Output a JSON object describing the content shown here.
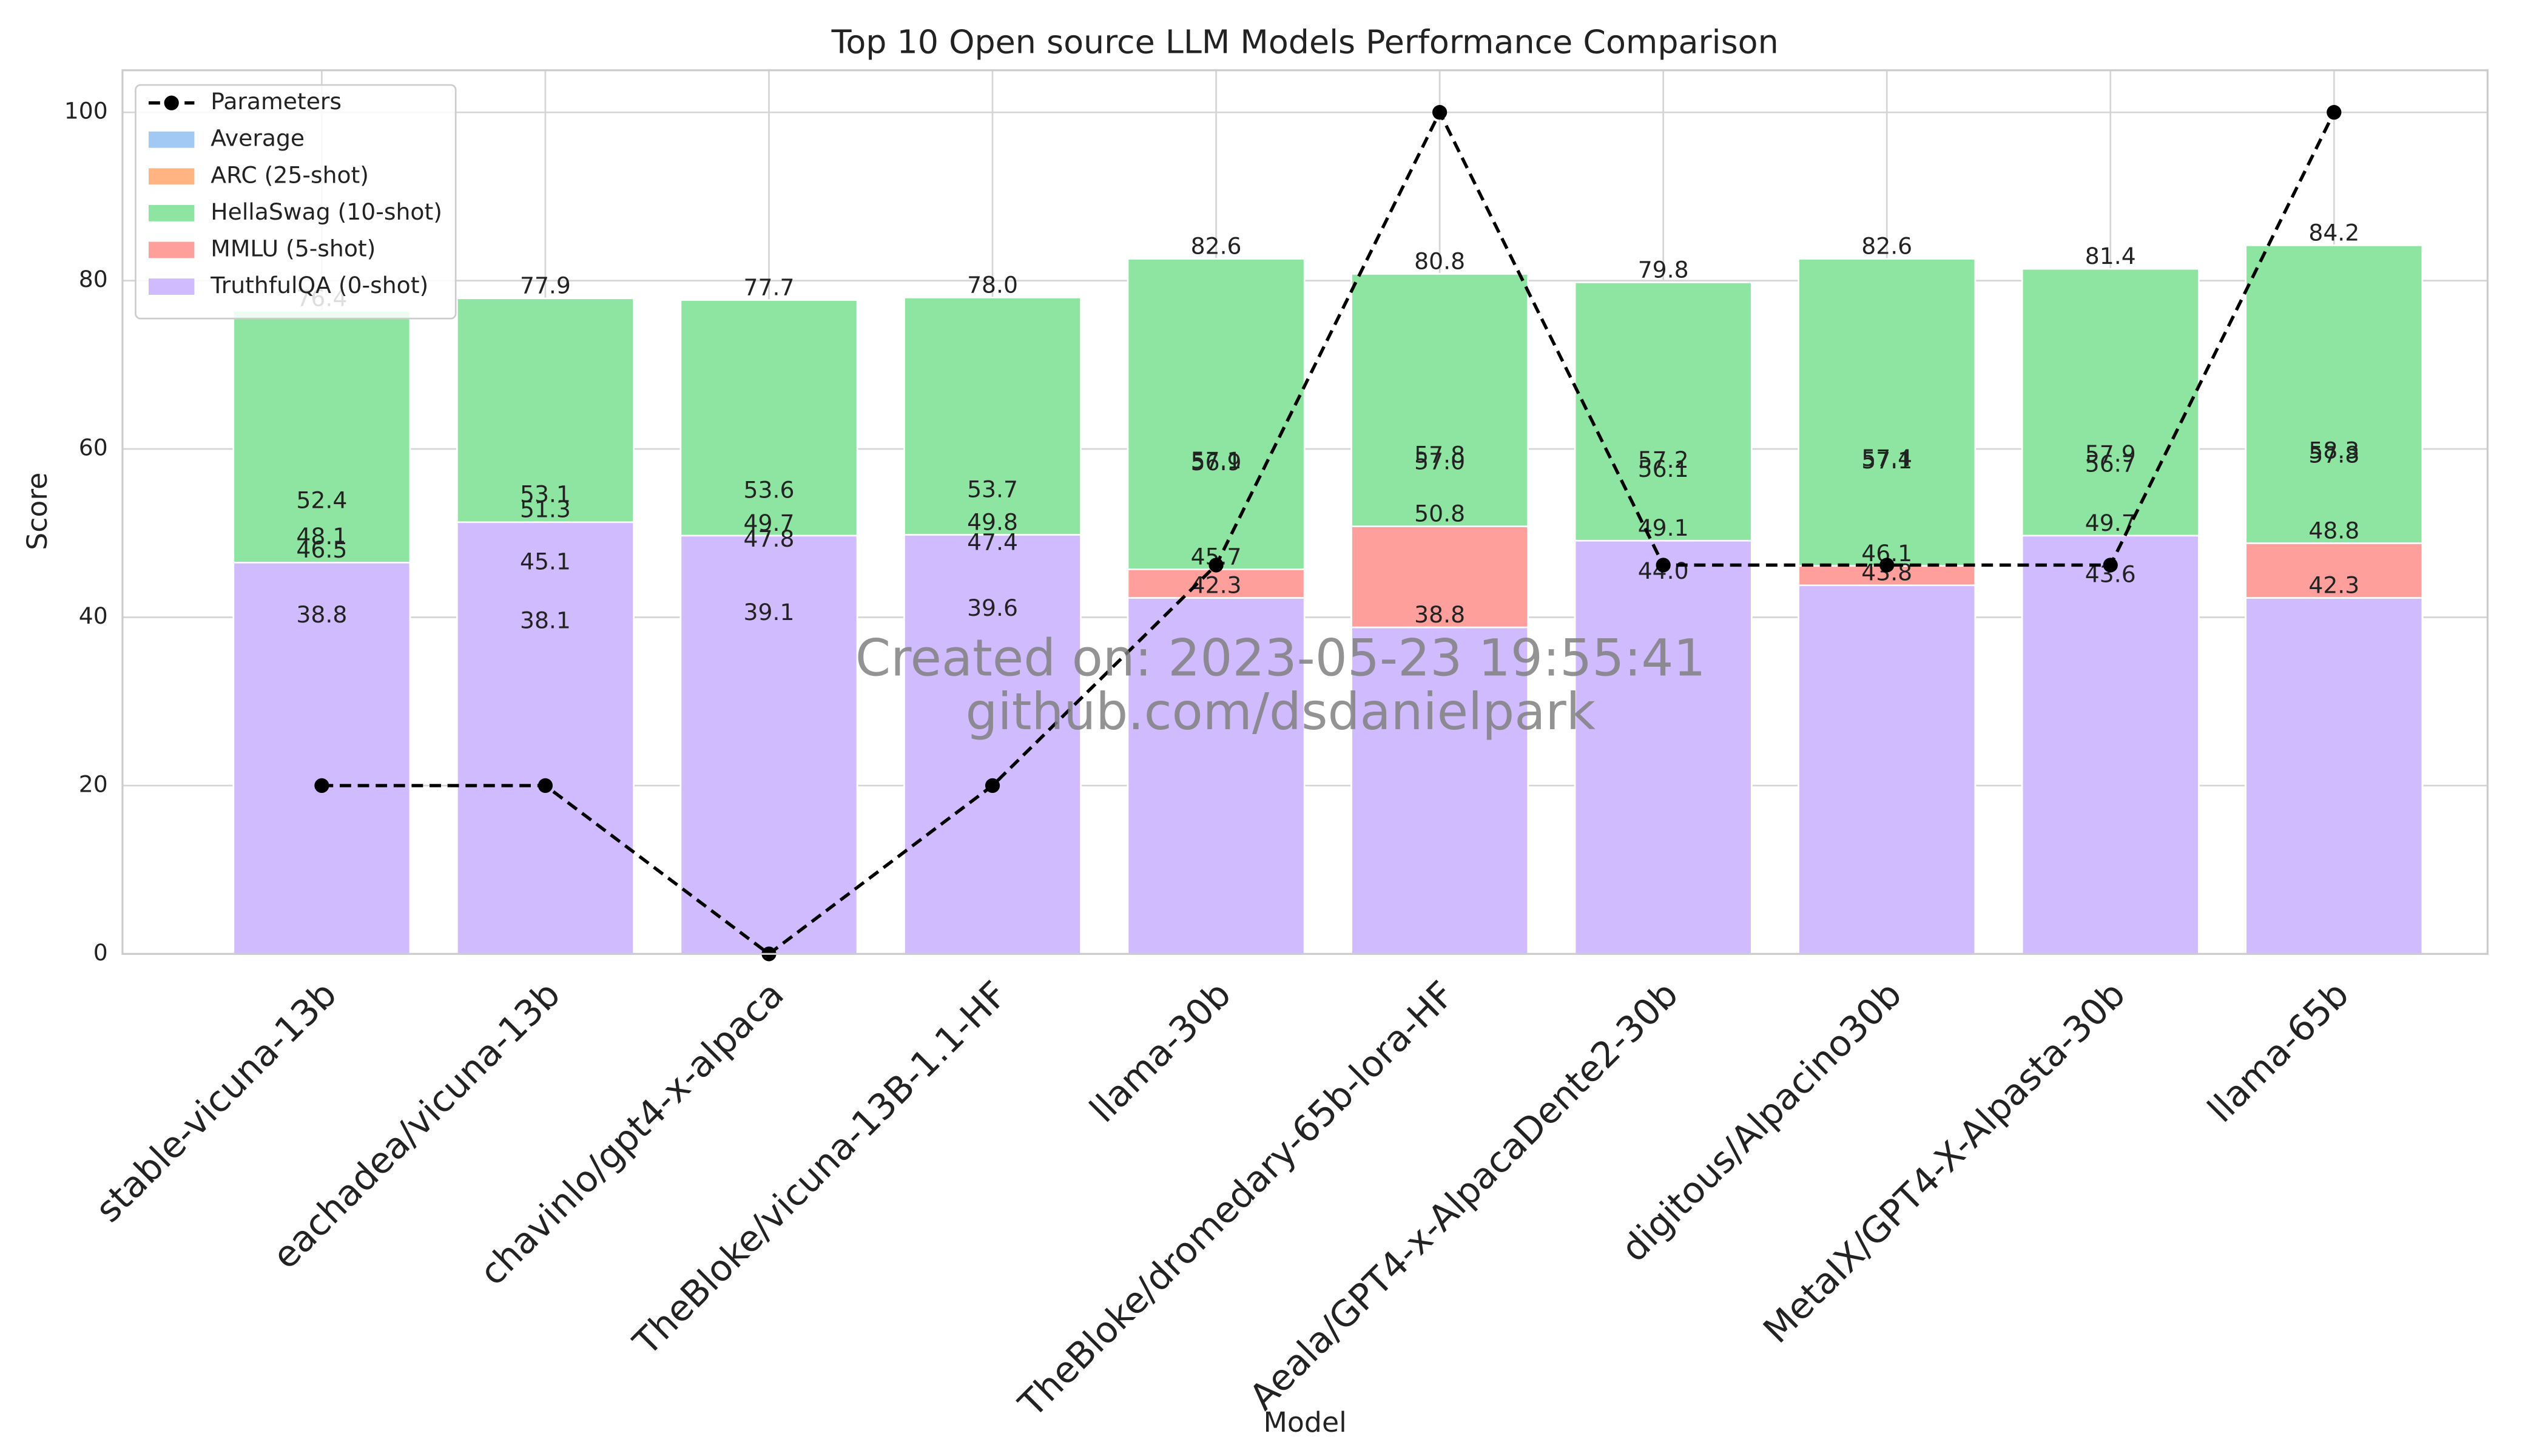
{
  "chart_data": {
    "type": "bar",
    "title": "Top 10 Open source LLM Models Performance Comparison",
    "x_label": "Model",
    "y_label": "Score",
    "annotations": [
      "Created on: 2023-05-23 19:55:41",
      "github.com/dsdanielpark"
    ],
    "categories": [
      "stable-vicuna-13b",
      "eachadea/vicuna-13b",
      "chavinlo/gpt4-x-alpaca",
      "TheBloke/vicuna-13B-1.1-HF",
      "llama-30b",
      "TheBloke/dromedary-65b-lora-HF",
      "Aeala/GPT4-x-AlpacaDente2-30b",
      "digitous/Alpacino30b",
      "MetaIX/GPT4-X-Alpasta-30b",
      "llama-65b"
    ],
    "ylim": [
      0,
      105
    ],
    "yticks": [
      0,
      20,
      40,
      60,
      80,
      100
    ],
    "grid": true,
    "legend": "upper left",
    "series": [
      {
        "name": "Parameters",
        "type": "line",
        "linestyle": "dashed",
        "marker": "circle",
        "color": "#000000",
        "values": [
          20,
          20,
          0,
          20,
          46.2,
          100,
          46.2,
          46.2,
          46.2,
          100
        ]
      },
      {
        "name": "Average",
        "color": "#a1c9f4",
        "values": [
          52.4,
          53.1,
          53.6,
          53.7,
          56.9,
          57.0,
          57.2,
          57.4,
          57.9,
          58.3
        ],
        "value_labels": [
          "52.4",
          "53.1",
          "53.6",
          "53.7",
          "56.9",
          "57.0",
          "57.2",
          "57.4",
          "57.9",
          "58.3"
        ]
      },
      {
        "name": "ARC (25-shot)",
        "color": "#ffb482",
        "values": [
          48.1,
          45.1,
          47.8,
          47.4,
          57.1,
          57.8,
          56.1,
          57.1,
          56.7,
          57.8
        ],
        "value_labels": [
          "48.1",
          "45.1",
          "47.8",
          "47.4",
          "57.1",
          "57.8",
          "56.1",
          "57.1",
          "56.7",
          "57.8"
        ]
      },
      {
        "name": "HellaSwag (10-shot)",
        "color": "#8de5a1",
        "values": [
          76.4,
          77.9,
          77.7,
          78.0,
          82.6,
          80.8,
          79.8,
          82.6,
          81.4,
          84.2
        ],
        "value_labels": [
          "76.4",
          "77.9",
          "77.7",
          "78.0",
          "82.6",
          "80.8",
          "79.8",
          "82.6",
          "81.4",
          "84.2"
        ]
      },
      {
        "name": "MMLU (5-shot)",
        "color": "#ff9f9b",
        "values": [
          38.8,
          38.1,
          39.1,
          39.6,
          45.7,
          50.8,
          44.0,
          46.1,
          43.6,
          48.8
        ],
        "value_labels": [
          "38.8",
          "38.1",
          "39.1",
          "39.6",
          "45.7",
          "50.8",
          "44.0",
          "46.1",
          "43.6",
          "48.8"
        ]
      },
      {
        "name": "TruthfulQA (0-shot)",
        "color": "#d0bbff",
        "values": [
          46.5,
          51.3,
          49.7,
          49.8,
          42.3,
          38.8,
          49.1,
          43.8,
          49.7,
          42.3
        ],
        "value_labels": [
          "46.5",
          "51.3",
          "49.7",
          "49.8",
          "42.3",
          "38.8",
          "49.1",
          "43.8",
          "49.7",
          "42.3"
        ]
      }
    ]
  }
}
